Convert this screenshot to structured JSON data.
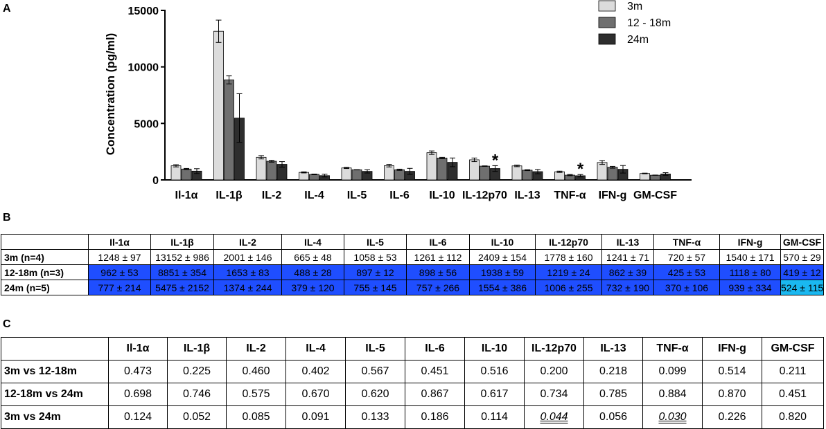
{
  "panels": {
    "a": "A",
    "b": "B",
    "c": "C"
  },
  "colors": {
    "bar_3m": "#dcdcdc",
    "bar_12_18m": "#6f6f6f",
    "bar_24m": "#2e2e2e",
    "blue_highlight": "#1f4eff",
    "cyan_highlight": "#1ab8f0"
  },
  "chart_data": {
    "type": "bar",
    "categories": [
      "Il-1α",
      "IL-1β",
      "IL-2",
      "IL-4",
      "IL-5",
      "IL-6",
      "IL-10",
      "IL-12p70",
      "IL-13",
      "TNF-α",
      "IFN-g",
      "GM-CSF"
    ],
    "series": [
      {
        "name": "3m",
        "values": [
          1248,
          13152,
          2001,
          665,
          1058,
          1261,
          2409,
          1778,
          1241,
          720,
          1540,
          570
        ],
        "errors": [
          97,
          986,
          146,
          48,
          53,
          112,
          154,
          160,
          71,
          57,
          171,
          29
        ]
      },
      {
        "name": "12 - 18m",
        "values": [
          962,
          8851,
          1653,
          488,
          897,
          898,
          1938,
          1219,
          862,
          425,
          1118,
          419
        ],
        "errors": [
          53,
          354,
          83,
          28,
          12,
          56,
          59,
          24,
          39,
          53,
          80,
          12
        ]
      },
      {
        "name": "24m",
        "values": [
          777,
          5475,
          1374,
          379,
          755,
          757,
          1554,
          1006,
          732,
          370,
          939,
          524
        ],
        "errors": [
          214,
          2152,
          244,
          120,
          145,
          266,
          386,
          255,
          190,
          106,
          334,
          115
        ]
      }
    ],
    "ylabel": "Concentration (pg/ml)",
    "ylim": [
      0,
      15000
    ],
    "yticks": [
      0,
      5000,
      10000,
      15000
    ],
    "annotations": [
      {
        "category": "IL-12p70",
        "series": "24m",
        "text": "*"
      },
      {
        "category": "TNF-α",
        "series": "24m",
        "text": "*"
      }
    ],
    "legend_position": "top-right",
    "grid": false
  },
  "table_b": {
    "headers": [
      "",
      "Il-1α",
      "IL-1β",
      "IL-2",
      "IL-4",
      "IL-5",
      "IL-6",
      "IL-10",
      "IL-12p70",
      "IL-13",
      "TNF-α",
      "IFN-g",
      "GM-CSF"
    ],
    "rows": [
      {
        "label": "3m (n=4)",
        "cells": [
          "1248 ± 97",
          "13152 ± 986",
          "2001 ± 146",
          "665 ± 48",
          "1058 ± 53",
          "1261 ± 112",
          "2409 ± 154",
          "1778 ± 160",
          "1241 ± 71",
          "720 ± 57",
          "1540 ± 171",
          "570 ± 29"
        ]
      },
      {
        "label": "12-18m (n=3)",
        "cells": [
          "962 ± 53",
          "8851 ± 354",
          "1653 ± 83",
          "488 ± 28",
          "897 ± 12",
          "898 ± 56",
          "1938 ± 59",
          "1219 ± 24",
          "862 ± 39",
          "425 ± 53",
          "1118 ± 80",
          "419 ± 12"
        ]
      },
      {
        "label": "24m (n=5)",
        "cells": [
          "777 ± 214",
          "5475 ± 2152",
          "1374 ± 244",
          "379 ± 120",
          "755 ± 145",
          "757 ± 266",
          "1554 ± 386",
          "1006 ± 255",
          "732 ± 190",
          "370 ± 106",
          "939 ± 334",
          "524 ± 115"
        ]
      }
    ]
  },
  "table_c": {
    "headers": [
      "",
      "Il-1α",
      "IL-1β",
      "IL-2",
      "IL-4",
      "IL-5",
      "IL-6",
      "IL-10",
      "IL-12p70",
      "IL-13",
      "TNF-α",
      "IFN-g",
      "GM-CSF"
    ],
    "rows": [
      {
        "label": "3m vs 12-18m",
        "cells": [
          "0.473",
          "0.225",
          "0.460",
          "0.402",
          "0.567",
          "0.451",
          "0.516",
          "0.200",
          "0.218",
          "0.099",
          "0.514",
          "0.211"
        ]
      },
      {
        "label": "12-18m vs 24m",
        "cells": [
          "0.698",
          "0.746",
          "0.575",
          "0.670",
          "0.620",
          "0.867",
          "0.617",
          "0.734",
          "0.785",
          "0.884",
          "0.870",
          "0.451"
        ]
      },
      {
        "label": "3m vs 24m",
        "cells": [
          "0.124",
          "0.052",
          "0.085",
          "0.091",
          "0.133",
          "0.186",
          "0.114",
          "0.044",
          "0.056",
          "0.030",
          "0.226",
          "0.820"
        ]
      }
    ]
  }
}
